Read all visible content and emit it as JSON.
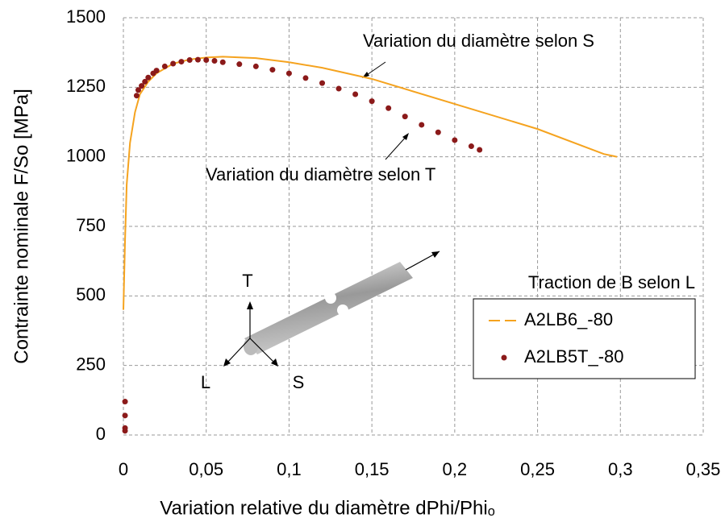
{
  "chart_data": {
    "type": "line-scatter",
    "x_label": "Variation relative du diamètre dPhi/Phiₒ",
    "y_label": "Contrainte nominale F/So [MPa]",
    "xlim": [
      0,
      0.35
    ],
    "ylim": [
      0,
      1500
    ],
    "xticks": [
      0,
      {
        "value": 0.05,
        "label": "0,05"
      },
      {
        "value": 0.1,
        "label": "0,1"
      },
      {
        "value": 0.15,
        "label": "0,15"
      },
      {
        "value": 0.2,
        "label": "0,2"
      },
      {
        "value": 0.25,
        "label": "0,25"
      },
      {
        "value": 0.3,
        "label": "0,3"
      },
      {
        "value": 0.35,
        "label": "0,35"
      }
    ],
    "yticks": [
      0,
      250,
      500,
      750,
      1000,
      1250,
      1500
    ],
    "grid": true,
    "legend_title": "Traction de B selon L",
    "legend_position": "right",
    "annotations": [
      "Variation du diamètre selon S",
      "Variation du diamètre selon T"
    ],
    "axis_labels_diagram": [
      "T",
      "L",
      "S"
    ],
    "series": [
      {
        "name": "A2LB6_-80",
        "color": "#f5a31f",
        "style": "line",
        "x": [
          0,
          0.001,
          0.002,
          0.004,
          0.007,
          0.01,
          0.015,
          0.02,
          0.03,
          0.04,
          0.05,
          0.06,
          0.08,
          0.1,
          0.12,
          0.15,
          0.2,
          0.25,
          0.29,
          0.298
        ],
        "values": [
          450,
          700,
          900,
          1050,
          1160,
          1225,
          1270,
          1300,
          1335,
          1350,
          1357,
          1360,
          1355,
          1340,
          1320,
          1280,
          1190,
          1100,
          1010,
          1000
        ]
      },
      {
        "name": "A2LB5T_-80",
        "color": "#8b1a1a",
        "style": "markers",
        "x": [
          0.001,
          0.001,
          0.001,
          0.001,
          0.008,
          0.009,
          0.011,
          0.013,
          0.015,
          0.018,
          0.02,
          0.025,
          0.03,
          0.035,
          0.04,
          0.045,
          0.05,
          0.055,
          0.06,
          0.07,
          0.08,
          0.09,
          0.1,
          0.11,
          0.12,
          0.13,
          0.14,
          0.15,
          0.16,
          0.17,
          0.18,
          0.19,
          0.2,
          0.21,
          0.215
        ],
        "values": [
          120,
          70,
          25,
          15,
          1220,
          1240,
          1255,
          1270,
          1285,
          1300,
          1310,
          1325,
          1335,
          1342,
          1348,
          1349,
          1348,
          1345,
          1340,
          1333,
          1325,
          1313,
          1300,
          1283,
          1265,
          1245,
          1225,
          1200,
          1175,
          1145,
          1115,
          1088,
          1060,
          1038,
          1025
        ]
      }
    ]
  }
}
